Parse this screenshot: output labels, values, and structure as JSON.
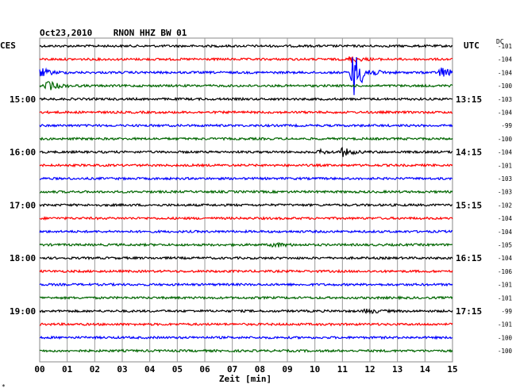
{
  "chart_data": {
    "type": "line",
    "title": "Oct23,2010    RNON HHZ BW 01",
    "xlabel": "Zeit [min]",
    "ylabel_left": "CES",
    "ylabel_right": "UTC",
    "dc_label": "DC",
    "x_ticks": [
      "00",
      "01",
      "02",
      "03",
      "04",
      "05",
      "06",
      "07",
      "08",
      "09",
      "10",
      "11",
      "12",
      "13",
      "14",
      "15"
    ],
    "xlim": [
      0,
      15
    ],
    "left_time_labels": [
      {
        "row": 4,
        "label": "15:00"
      },
      {
        "row": 8,
        "label": "16:00"
      },
      {
        "row": 12,
        "label": "17:00"
      },
      {
        "row": 16,
        "label": "18:00"
      },
      {
        "row": 20,
        "label": "19:00"
      }
    ],
    "right_time_labels": [
      {
        "row": 4,
        "label": "13:15"
      },
      {
        "row": 8,
        "label": "14:15"
      },
      {
        "row": 12,
        "label": "15:15"
      },
      {
        "row": 16,
        "label": "16:15"
      },
      {
        "row": 20,
        "label": "17:15"
      }
    ],
    "trace_colors": [
      "#000000",
      "#ff0000",
      "#0000ff",
      "#006600"
    ],
    "dc_offsets": [
      "-101",
      "-104",
      "-104",
      "-100",
      "-103",
      "-104",
      "-99",
      "-100",
      "-104",
      "-101",
      "-103",
      "-103",
      "-102",
      "-104",
      "-104",
      "-105",
      "-104",
      "-106",
      "-101",
      "-101",
      "-99",
      "-101",
      "-100",
      "-100"
    ],
    "events": [
      {
        "row": 1,
        "minute": 11.3,
        "amplitude": 4
      },
      {
        "row": 2,
        "minute": 0.0,
        "amplitude": 6
      },
      {
        "row": 2,
        "minute": 11.4,
        "amplitude": 30
      },
      {
        "row": 2,
        "minute": 14.6,
        "amplitude": 7
      },
      {
        "row": 3,
        "minute": 0.3,
        "amplitude": 6
      },
      {
        "row": 8,
        "minute": 11.0,
        "amplitude": 5
      },
      {
        "row": 8,
        "minute": 10.2,
        "amplitude": 2
      },
      {
        "row": 15,
        "minute": 8.5,
        "amplitude": 3
      },
      {
        "row": 20,
        "minute": 11.9,
        "amplitude": 3
      }
    ],
    "grid": true
  },
  "footer_mark": "*"
}
